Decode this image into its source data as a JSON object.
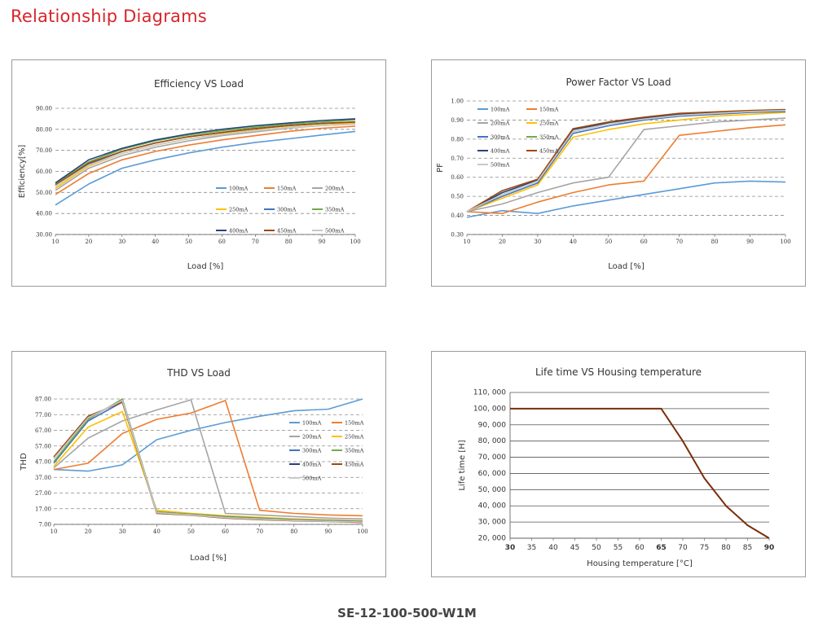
{
  "page": {
    "title": "Relationship Diagrams",
    "footer": "SE-12-100-500-W1M"
  },
  "chart_data": [
    {
      "type": "line",
      "title": "Efficiency VS Load",
      "xlabel": "Load [%]",
      "ylabel": "Efficiency[%]",
      "x": [
        10,
        20,
        30,
        40,
        50,
        60,
        70,
        80,
        90,
        100
      ],
      "xlim": [
        10,
        100
      ],
      "ylim": [
        30,
        90
      ],
      "yticks": [
        30,
        40,
        50,
        60,
        70,
        80,
        90
      ],
      "yticklabels": [
        "30.00",
        "40.00",
        "50.00",
        "60.00",
        "70.00",
        "80.00",
        "90.00"
      ],
      "xticks": [
        10,
        20,
        30,
        40,
        50,
        60,
        70,
        80,
        90,
        100
      ],
      "grid": "dashed horizontal",
      "legend": "lower-right",
      "series": [
        {
          "name": "100mA",
          "color": "#5b9bd5",
          "values": [
            44,
            54,
            61.5,
            65.5,
            68.8,
            71.5,
            73.8,
            75.5,
            77.3,
            79
          ]
        },
        {
          "name": "150mA",
          "color": "#ed7d31",
          "values": [
            49,
            59,
            65.5,
            69.5,
            72.5,
            75,
            77,
            79,
            80.5,
            81.5
          ]
        },
        {
          "name": "200mA",
          "color": "#a5a5a5",
          "values": [
            51,
            61.5,
            67.5,
            71.5,
            74.5,
            77,
            78.8,
            80.5,
            81.8,
            82.5
          ]
        },
        {
          "name": "250mA",
          "color": "#ffc000",
          "values": [
            52,
            62.5,
            68.5,
            72.5,
            75.5,
            77.8,
            79.5,
            81,
            82,
            83
          ]
        },
        {
          "name": "300mA",
          "color": "#4472c4",
          "values": [
            53,
            63.5,
            69.5,
            73.5,
            76.5,
            78.5,
            80.3,
            81.8,
            82.8,
            83.5
          ]
        },
        {
          "name": "350mA",
          "color": "#70ad47",
          "values": [
            54,
            64.5,
            70.5,
            74.5,
            77.3,
            79.3,
            81,
            82.5,
            83.5,
            84.5
          ]
        },
        {
          "name": "400mA",
          "color": "#264478",
          "values": [
            54.5,
            65.5,
            71,
            75,
            77.8,
            80,
            81.7,
            83,
            84.2,
            85
          ]
        },
        {
          "name": "450mA",
          "color": "#9e480e",
          "values": [
            53.5,
            64,
            69.5,
            73.5,
            76.5,
            78.5,
            80.3,
            81.8,
            82.8,
            83.5
          ]
        },
        {
          "name": "500mA",
          "color": "#c9c9c9",
          "values": [
            53,
            63,
            68.5,
            72.5,
            75.5,
            77.5,
            79.3,
            80.8,
            81.8,
            82.5
          ]
        }
      ]
    },
    {
      "type": "line",
      "title": "Power Factor VS Load",
      "xlabel": "Load [%]",
      "ylabel": "PF",
      "x": [
        10,
        20,
        30,
        40,
        50,
        60,
        70,
        80,
        90,
        100
      ],
      "xlim": [
        10,
        100
      ],
      "ylim": [
        0.3,
        1.0
      ],
      "yticks": [
        0.3,
        0.4,
        0.5,
        0.6,
        0.7,
        0.8,
        0.9,
        1.0
      ],
      "yticklabels": [
        "0.30",
        "0.40",
        "0.50",
        "0.60",
        "0.70",
        "0.80",
        "0.90",
        "1.00"
      ],
      "xticks": [
        10,
        20,
        30,
        40,
        50,
        60,
        70,
        80,
        90,
        100
      ],
      "grid": "dashed horizontal",
      "legend": "top-left",
      "series": [
        {
          "name": "100mA",
          "color": "#5b9bd5",
          "values": [
            0.39,
            0.425,
            0.41,
            0.45,
            0.48,
            0.51,
            0.54,
            0.57,
            0.58,
            0.575
          ]
        },
        {
          "name": "150mA",
          "color": "#ed7d31",
          "values": [
            0.42,
            0.41,
            0.47,
            0.52,
            0.56,
            0.58,
            0.82,
            0.84,
            0.86,
            0.875
          ]
        },
        {
          "name": "200mA",
          "color": "#a5a5a5",
          "values": [
            0.42,
            0.46,
            0.52,
            0.57,
            0.6,
            0.85,
            0.87,
            0.89,
            0.9,
            0.91
          ]
        },
        {
          "name": "250mA",
          "color": "#ffc000",
          "values": [
            0.42,
            0.49,
            0.56,
            0.81,
            0.85,
            0.88,
            0.9,
            0.92,
            0.93,
            0.94
          ]
        },
        {
          "name": "300mA",
          "color": "#4472c4",
          "values": [
            0.42,
            0.5,
            0.57,
            0.83,
            0.87,
            0.9,
            0.92,
            0.93,
            0.94,
            0.945
          ]
        },
        {
          "name": "350mA",
          "color": "#70ad47",
          "values": [
            0.42,
            0.51,
            0.58,
            0.84,
            0.88,
            0.905,
            0.925,
            0.935,
            0.945,
            0.95
          ]
        },
        {
          "name": "400mA",
          "color": "#264478",
          "values": [
            0.42,
            0.52,
            0.585,
            0.85,
            0.885,
            0.91,
            0.93,
            0.94,
            0.948,
            0.953
          ]
        },
        {
          "name": "450mA",
          "color": "#9e480e",
          "values": [
            0.42,
            0.53,
            0.59,
            0.855,
            0.89,
            0.915,
            0.935,
            0.943,
            0.95,
            0.955
          ]
        },
        {
          "name": "500mA",
          "color": "#c9c9c9",
          "values": [
            0.42,
            0.51,
            0.58,
            0.84,
            0.88,
            0.905,
            0.925,
            0.935,
            0.945,
            0.95
          ]
        }
      ]
    },
    {
      "type": "line",
      "title": "THD VS Load",
      "xlabel": "Load [%]",
      "ylabel": "THD",
      "x": [
        10,
        20,
        30,
        40,
        50,
        60,
        70,
        80,
        90,
        100
      ],
      "xlim": [
        10,
        100
      ],
      "ylim": [
        7,
        87
      ],
      "yticks": [
        7,
        17,
        27,
        37,
        47,
        57,
        67,
        77,
        87
      ],
      "yticklabels": [
        "7.00",
        "17.00",
        "27.00",
        "37.00",
        "47.00",
        "57.00",
        "67.00",
        "77.00",
        "87.00"
      ],
      "xticks": [
        10,
        20,
        30,
        40,
        50,
        60,
        70,
        80,
        90,
        100
      ],
      "grid": "dashed horizontal",
      "legend": "right",
      "series": [
        {
          "name": "100mA",
          "color": "#5b9bd5",
          "values": [
            42,
            41,
            45,
            61,
            67,
            72,
            76,
            79.5,
            80.5,
            87
          ]
        },
        {
          "name": "150mA",
          "color": "#ed7d31",
          "values": [
            42,
            46,
            65,
            74,
            78,
            86,
            16,
            14,
            13,
            12.5
          ]
        },
        {
          "name": "200mA",
          "color": "#a5a5a5",
          "values": [
            43,
            62,
            73,
            80,
            86.5,
            14,
            13,
            12,
            11,
            10.5
          ]
        },
        {
          "name": "250mA",
          "color": "#ffc000",
          "values": [
            44,
            69,
            79,
            16,
            14,
            12.5,
            11.5,
            10.5,
            9.8,
            9.3
          ]
        },
        {
          "name": "300mA",
          "color": "#4472c4",
          "values": [
            46,
            73,
            85,
            15,
            13.5,
            12,
            11,
            10,
            9.5,
            9
          ]
        },
        {
          "name": "350mA",
          "color": "#70ad47",
          "values": [
            47,
            74,
            87,
            15,
            13.5,
            11.8,
            10.8,
            9.8,
            9.3,
            8.8
          ]
        },
        {
          "name": "400mA",
          "color": "#264478",
          "values": [
            49,
            75,
            86,
            14.5,
            13,
            11.3,
            10.3,
            9.5,
            9,
            8.5
          ]
        },
        {
          "name": "450mA",
          "color": "#9e480e",
          "values": [
            50,
            76,
            85,
            14,
            12.8,
            11,
            10,
            9.3,
            8.8,
            8.2
          ]
        },
        {
          "name": "500mA",
          "color": "#c9c9c9",
          "values": [
            49,
            75,
            86,
            14.5,
            13,
            11.3,
            10.3,
            9.5,
            9,
            8.5
          ]
        }
      ]
    },
    {
      "type": "line",
      "title": "Life time VS Housing temperature",
      "xlabel": "Housing temperature [°C]",
      "ylabel": "Life time [H]",
      "x": [
        30,
        35,
        40,
        45,
        50,
        55,
        60,
        65,
        70,
        75,
        80,
        85,
        90
      ],
      "xlim": [
        30,
        90
      ],
      "ylim": [
        20000,
        110000
      ],
      "yticks": [
        20000,
        30000,
        40000,
        50000,
        60000,
        70000,
        80000,
        90000,
        100000,
        110000
      ],
      "yticklabels": [
        "20, 000",
        "30, 000",
        "40, 000",
        "50, 000",
        "60, 000",
        "70, 000",
        "80, 000",
        "90, 000",
        "100, 000",
        "110, 000"
      ],
      "xticks": [
        30,
        35,
        40,
        45,
        50,
        55,
        60,
        65,
        70,
        75,
        80,
        85,
        90
      ],
      "grid": "solid horizontal",
      "series": [
        {
          "color": "#7b2d0a",
          "values": [
            100000,
            100000,
            100000,
            100000,
            100000,
            100000,
            100000,
            100000,
            80000,
            57000,
            40000,
            28000,
            20000
          ]
        }
      ]
    }
  ]
}
